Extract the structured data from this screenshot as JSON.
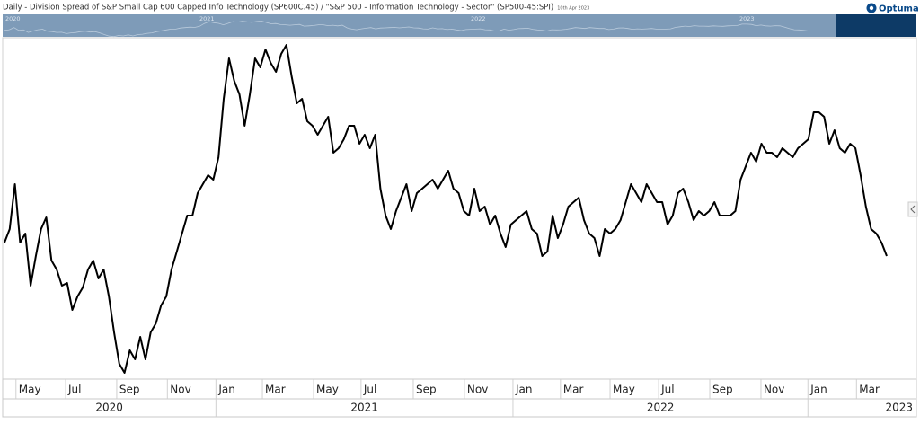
{
  "chart_data": {
    "type": "line",
    "title": "Daily - Division Spread of S&P Small Cap 600 Capped Info Technology (SP600C.45) / \"S&P 500 - Information Technology - Sector\" (SP500-45:SPI)",
    "date_note": "10th Apr 2023",
    "brand": "Optuma",
    "navigator_labels": [
      "2020",
      "2021",
      "2022",
      "2023"
    ],
    "color": "#000000",
    "ylim": [
      0,
      380
    ],
    "xlim": [
      0,
      169
    ],
    "values": [
      152,
      167,
      217,
      152,
      162,
      104,
      137,
      167,
      180,
      132,
      122,
      104,
      107,
      77,
      92,
      102,
      122,
      132,
      112,
      122,
      92,
      52,
      17,
      7,
      32,
      22,
      47,
      22,
      52,
      62,
      82,
      92,
      122,
      142,
      162,
      182,
      182,
      207,
      217,
      227,
      222,
      247,
      312,
      357,
      332,
      317,
      282,
      317,
      357,
      347,
      367,
      352,
      342,
      362,
      372,
      337,
      307,
      312,
      287,
      282,
      272,
      282,
      292,
      252,
      257,
      267,
      282,
      282,
      262,
      272,
      257,
      272,
      212,
      182,
      167,
      187,
      202,
      217,
      187,
      207,
      212,
      217,
      222,
      212,
      222,
      232,
      212,
      207,
      187,
      182,
      212,
      187,
      192,
      172,
      182,
      162,
      147,
      172,
      177,
      182,
      187,
      167,
      162,
      137,
      142,
      182,
      157,
      172,
      192,
      197,
      202,
      177,
      162,
      157,
      137,
      167,
      162,
      167,
      177,
      197,
      217,
      207,
      197,
      217,
      207,
      197,
      197,
      172,
      182,
      207,
      212,
      197,
      177,
      187,
      182,
      187,
      197,
      182,
      182,
      182,
      187,
      222,
      237,
      252,
      242,
      262,
      252,
      252,
      247,
      257,
      252,
      247,
      257,
      262,
      267,
      297,
      297,
      292,
      262,
      277,
      257,
      252,
      262,
      257,
      227,
      192,
      167,
      162,
      152,
      137
    ],
    "xticks": [
      {
        "value": 2.2,
        "label": "May"
      },
      {
        "value": 11.7,
        "label": "Jul"
      },
      {
        "value": 21.5,
        "label": "Sep"
      },
      {
        "value": 31.2,
        "label": "Nov"
      },
      {
        "value": 40.5,
        "label": "Jan"
      },
      {
        "value": 49.4,
        "label": "Mar"
      },
      {
        "value": 59.2,
        "label": "May"
      },
      {
        "value": 68.3,
        "label": "Jul"
      },
      {
        "value": 78.3,
        "label": "Sep"
      },
      {
        "value": 88.1,
        "label": "Nov"
      },
      {
        "value": 97.4,
        "label": "Jan"
      },
      {
        "value": 106.5,
        "label": "Mar"
      },
      {
        "value": 116,
        "label": "May"
      },
      {
        "value": 125.3,
        "label": "Jul"
      },
      {
        "value": 135.1,
        "label": "Sep"
      },
      {
        "value": 144.9,
        "label": "Nov"
      },
      {
        "value": 153.9,
        "label": "Jan"
      },
      {
        "value": 163.2,
        "label": "Mar"
      }
    ],
    "year_ticks": [
      {
        "value": -0.9,
        "label": "2020"
      },
      {
        "value": 40.5,
        "label": "2021"
      },
      {
        "value": 97.4,
        "label": "2022"
      },
      {
        "value": 153.9,
        "label": "2023"
      }
    ]
  }
}
